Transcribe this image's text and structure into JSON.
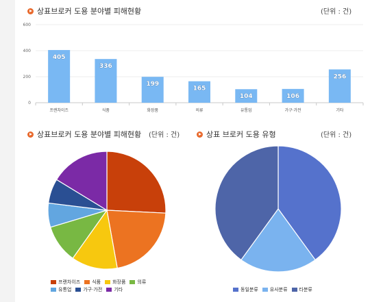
{
  "chart_data": [
    {
      "type": "bar",
      "title": "상표브로커 도용 분야별 피해현황",
      "unit": "(단위 : 건)",
      "categories": [
        "프랜차이즈",
        "식품",
        "화장품",
        "의류",
        "유통업",
        "가구·가전",
        "기타"
      ],
      "values": [
        405,
        336,
        199,
        165,
        104,
        106,
        256
      ],
      "ylim": [
        0,
        600
      ],
      "yticks": [
        0,
        200,
        400,
        600
      ],
      "grid": true,
      "bar_color": "#79b8f3"
    },
    {
      "type": "pie",
      "title": "상표브로커 도용 분야별 피해현황",
      "unit": "(단위 : 건)",
      "labels": [
        "프랜차이즈",
        "식품",
        "화장품",
        "의류",
        "유통업",
        "가구·가전",
        "기타"
      ],
      "values": [
        405,
        336,
        199,
        165,
        104,
        106,
        256
      ],
      "colors": [
        "#c8400a",
        "#ec7321",
        "#f7c80f",
        "#78b843",
        "#62a6e0",
        "#2a4f93",
        "#7b2aa6"
      ],
      "legend": "bottom"
    },
    {
      "type": "pie",
      "title": "상표 브로커 도용 유형",
      "unit": "(단위 : 건)",
      "labels": [
        "동일분류",
        "유사분류",
        "타분류"
      ],
      "values": [
        40,
        20,
        40
      ],
      "colors": [
        "#5572cc",
        "#7ab3ef",
        "#4e65a8"
      ],
      "legend": "bottom"
    }
  ]
}
